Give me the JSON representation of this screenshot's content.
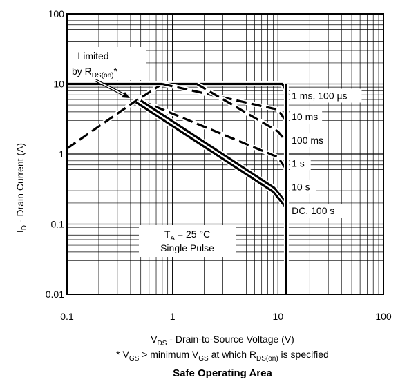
{
  "chart_data": {
    "type": "line",
    "xscale": "log",
    "yscale": "log",
    "xlim": [
      0.1,
      100
    ],
    "ylim": [
      0.01,
      100
    ],
    "grid": true,
    "x_ticks": [
      "0.1",
      "1",
      "10",
      "100"
    ],
    "y_ticks": [
      "0.01",
      "0.1",
      "1",
      "10",
      "100"
    ],
    "xlabel": {
      "main": "V",
      "sub": "DS",
      "rest": " - Drain-to-Source Voltage (V)"
    },
    "ylabel": {
      "main": "I",
      "sub": "D",
      "rest": " - Drain Current (A)"
    },
    "footnote": {
      "p1": "* V",
      "s1": "GS",
      "p2": " > minimum V",
      "s2": "GS",
      "p3": " at which R",
      "s3": "DS(on)",
      "p4": " is specified"
    },
    "title": "Safe Operating Area",
    "annotation_limited": {
      "line1": "Limited",
      "line2_main": "by R",
      "line2_sub": "DS(on)",
      "line2_tail": "*"
    },
    "annotation_conditions": {
      "line1_main": "T",
      "line1_sub": "A",
      "line1_tail": " = 25 °C",
      "line2": "Single Pulse"
    },
    "series": [
      {
        "name": "Limited by RDS(on)*",
        "style": "dashed",
        "points": [
          [
            0.1,
            1.2
          ],
          [
            0.43,
            5.5
          ],
          [
            0.8,
            10
          ]
        ]
      },
      {
        "name": "1 ms, 100 µs",
        "style": "solid",
        "points": [
          [
            0.1,
            10
          ],
          [
            11,
            10
          ],
          [
            12.5,
            7
          ]
        ]
      },
      {
        "name": "10 ms",
        "style": "dashed",
        "points": [
          [
            0.8,
            10
          ],
          [
            10,
            4.3
          ],
          [
            12,
            2.9
          ]
        ]
      },
      {
        "name": "100 ms",
        "style": "dashed",
        "points": [
          [
            1.7,
            10
          ],
          [
            10,
            2.1
          ],
          [
            12,
            1.5
          ]
        ]
      },
      {
        "name": "1 s",
        "style": "dashed",
        "points": [
          [
            0.5,
            5.8
          ],
          [
            10,
            0.9
          ],
          [
            12,
            0.6
          ]
        ]
      },
      {
        "name": "10 s",
        "style": "solid",
        "points": [
          [
            0.5,
            5.8
          ],
          [
            9.2,
            0.33
          ],
          [
            12,
            0.2
          ]
        ]
      },
      {
        "name": "DC, 100 s",
        "style": "solid",
        "points": [
          [
            0.45,
            5.5
          ],
          [
            9,
            0.29
          ],
          [
            12,
            0.17
          ]
        ]
      },
      {
        "name": "VDS limit",
        "style": "solid",
        "points": [
          [
            12,
            10
          ],
          [
            12,
            0.01
          ]
        ]
      }
    ],
    "labels": [
      {
        "name": "1 ms, 100 µs",
        "at": [
          12.5,
          6.8
        ]
      },
      {
        "name": "10 ms",
        "at": [
          12.5,
          3.4
        ]
      },
      {
        "name": "100 ms",
        "at": [
          12.5,
          1.57
        ]
      },
      {
        "name": "1 s",
        "at": [
          12.5,
          0.74
        ]
      },
      {
        "name": "10 s",
        "at": [
          12.5,
          0.34
        ]
      },
      {
        "name": "DC, 100 s",
        "at": [
          12.5,
          0.155
        ]
      }
    ]
  }
}
